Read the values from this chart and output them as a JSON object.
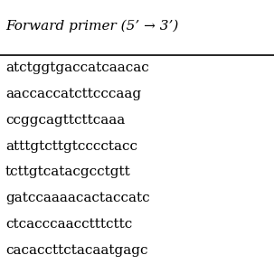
{
  "header": "Forward primer (5’ → 3’)",
  "rows": [
    "atctggtgaccatcaacac",
    "aaccaccatcttcccaag",
    "ccggcagttcttcaaa",
    "atttgtcttgtcccctacc",
    "tcttgtcatacgcctgtt",
    "gatccaaaacactaccatc",
    "ctcacccaacctttcttc",
    "cacaccttctacaatgagc"
  ],
  "bg_color": "#ffffff",
  "text_color": "#000000",
  "header_fontsize": 11,
  "row_fontsize": 11,
  "line_color": "#000000"
}
